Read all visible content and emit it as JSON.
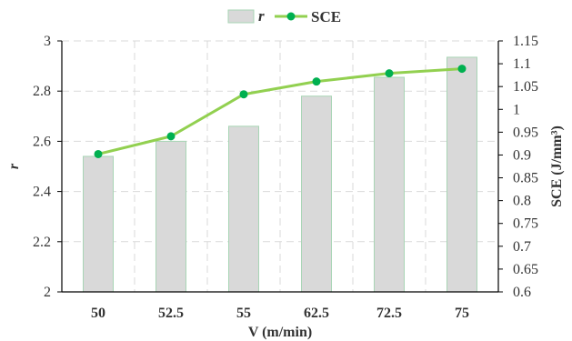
{
  "chart_data": {
    "type": "bar+line",
    "categories": [
      "50",
      "52.5",
      "55",
      "62.5",
      "72.5",
      "75"
    ],
    "xlabel": "V (m/min)",
    "series": [
      {
        "name": "r",
        "type": "bar",
        "axis": "left",
        "values": [
          2.54,
          2.6,
          2.66,
          2.78,
          2.855,
          2.935
        ],
        "color": "#d9d9d9",
        "edge_color": "#a8d5b5"
      },
      {
        "name": "SCE",
        "type": "line",
        "axis": "right",
        "values": [
          0.902,
          0.941,
          1.033,
          1.061,
          1.079,
          1.089
        ],
        "color": "#92d050",
        "marker_color": "#00b050"
      }
    ],
    "y_left": {
      "label": "r",
      "ylim": [
        2,
        3
      ],
      "ticks": [
        "2",
        "2.2",
        "2.4",
        "2.6",
        "2.8",
        "3"
      ]
    },
    "y_right": {
      "label": "SCE (J/mm³)",
      "ylim": [
        0.6,
        1.15
      ],
      "ticks": [
        "0.6",
        "0.65",
        "0.7",
        "0.75",
        "0.8",
        "0.85",
        "0.9",
        "0.95",
        "1",
        "1.05",
        "1.1",
        "1.15"
      ]
    },
    "grid": true,
    "legend": "top-center"
  }
}
